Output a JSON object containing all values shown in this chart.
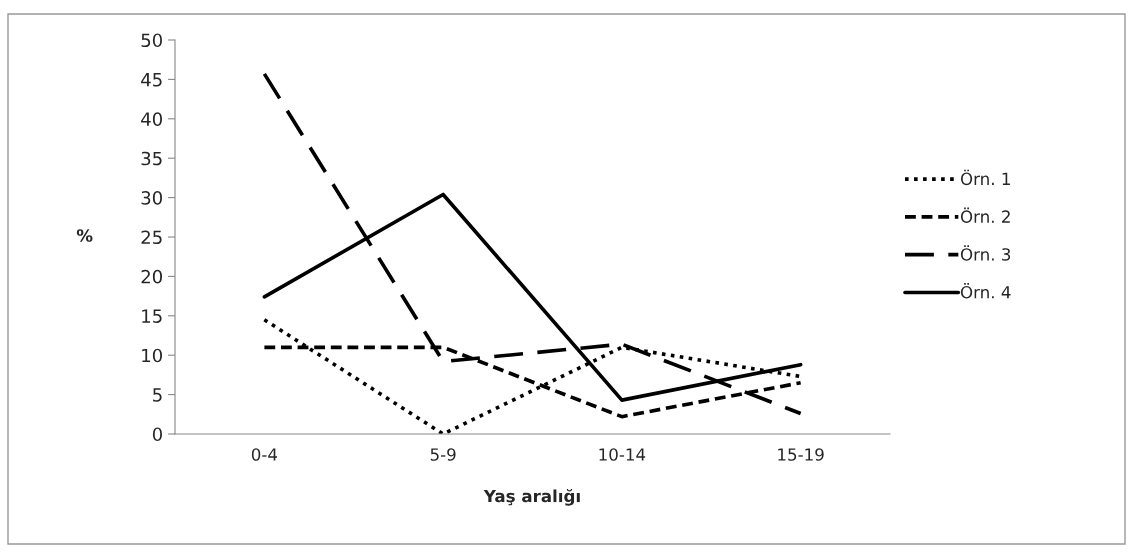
{
  "chart_data": {
    "type": "line",
    "xlabel": "Yaş aralığı",
    "ylabel": "%",
    "categories": [
      "0-4",
      "5-9",
      "10-14",
      "15-19"
    ],
    "series": [
      {
        "name": "Örn. 1",
        "color": "#000000",
        "line_style": "dotted",
        "values": [
          14.5,
          0,
          11,
          7.3
        ]
      },
      {
        "name": "Örn. 2",
        "color": "#000000",
        "line_style": "dashed",
        "values": [
          11,
          11,
          2.2,
          6.5
        ]
      },
      {
        "name": "Örn. 3",
        "color": "#000000",
        "line_style": "dashed",
        "values": [
          45.7,
          9.2,
          11.4,
          2.6
        ]
      },
      {
        "name": "Örn. 4",
        "color": "#000000",
        "line_style": "solid",
        "values": [
          17.4,
          30.4,
          4.3,
          8.8
        ]
      }
    ],
    "ylim": [
      0,
      50
    ],
    "yticks": [
      0,
      5,
      10,
      15,
      20,
      25,
      30,
      35,
      40,
      45,
      50
    ],
    "grid": false,
    "legend": "right",
    "marker": "none"
  }
}
